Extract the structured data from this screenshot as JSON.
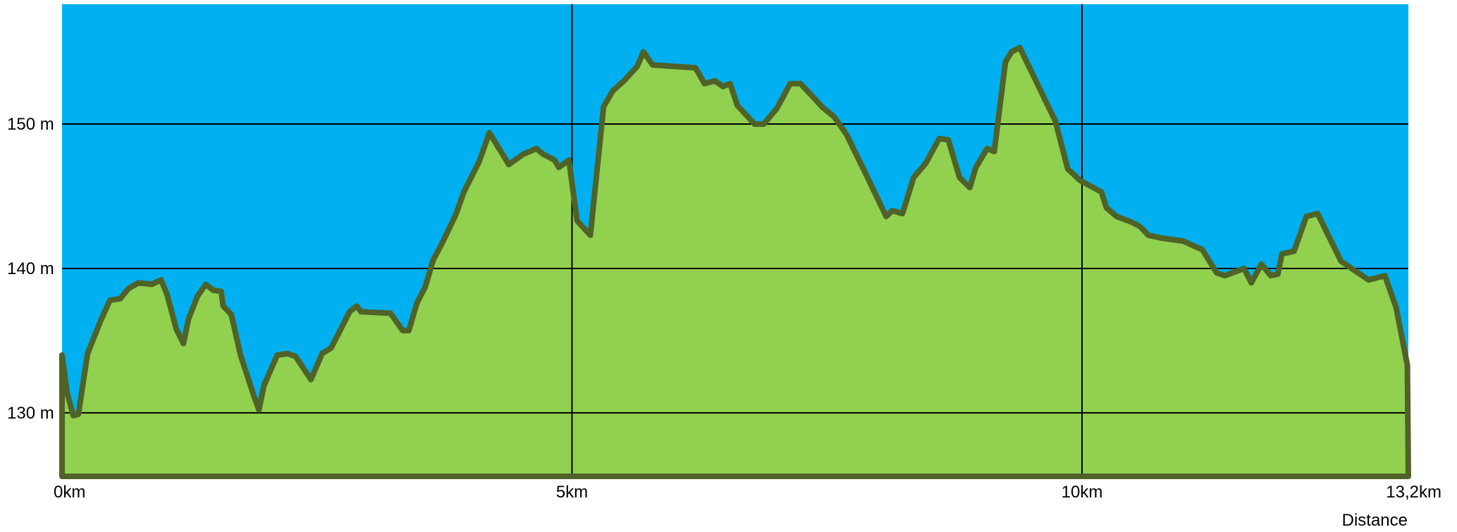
{
  "chart_data": {
    "type": "area",
    "title": "",
    "xlabel": "Distance",
    "ylabel": "",
    "xlim": [
      0,
      13.2
    ],
    "ylim": [
      125.6,
      158.3
    ],
    "grid": true,
    "x_ticks": [
      {
        "value": 0,
        "label": "0km"
      },
      {
        "value": 5,
        "label": "5km"
      },
      {
        "value": 10,
        "label": "10km"
      },
      {
        "value": 13.2,
        "label": "13,2km"
      }
    ],
    "y_ticks": [
      {
        "value": 130,
        "label": "130 m"
      },
      {
        "value": 140,
        "label": "140 m"
      },
      {
        "value": 150,
        "label": "150 m"
      }
    ],
    "colors": {
      "sky": "#00b0f0",
      "fill": "#92d050",
      "line": "#4f6228",
      "grid": "#000000"
    },
    "series": [
      {
        "x": [
          0.0,
          0.05,
          0.11,
          0.16,
          0.25,
          0.38,
          0.47,
          0.57,
          0.65,
          0.75,
          0.88,
          0.97,
          1.03,
          1.12,
          1.19,
          1.24,
          1.33,
          1.41,
          1.48,
          1.56,
          1.58,
          1.66,
          1.75,
          1.88,
          1.93,
          1.98,
          2.11,
          2.21,
          2.29,
          2.44,
          2.55,
          2.64,
          2.82,
          2.89,
          2.93,
          3.22,
          3.34,
          3.4,
          3.48,
          3.56,
          3.64,
          3.73,
          3.86,
          3.94,
          4.09,
          4.19,
          4.38,
          4.52,
          4.65,
          4.72,
          4.83,
          4.87,
          4.97,
          5.05,
          5.18,
          5.31,
          5.4,
          5.51,
          5.64,
          5.7,
          5.79,
          6.21,
          6.3,
          6.4,
          6.48,
          6.55,
          6.62,
          6.79,
          6.88,
          7.01,
          7.14,
          7.24,
          7.36,
          7.45,
          7.57,
          7.69,
          7.87,
          8.08,
          8.14,
          8.24,
          8.35,
          8.47,
          8.6,
          8.69,
          8.8,
          8.9,
          8.96,
          9.07,
          9.14,
          9.25,
          9.31,
          9.39,
          9.74,
          9.86,
          9.98,
          10.19,
          10.24,
          10.34,
          10.49,
          10.57,
          10.65,
          10.78,
          10.99,
          11.18,
          11.32,
          11.4,
          11.59,
          11.66,
          11.76,
          11.85,
          11.92,
          11.96,
          12.08,
          12.2,
          12.31,
          12.54,
          12.81,
          12.97,
          13.08,
          13.19
        ],
        "values": [
          134.0,
          131.4,
          129.8,
          129.9,
          134.1,
          136.4,
          137.8,
          137.9,
          138.6,
          139.0,
          138.9,
          139.2,
          138.2,
          135.8,
          134.8,
          136.5,
          138.1,
          138.9,
          138.5,
          138.4,
          137.4,
          136.8,
          134.0,
          131.2,
          130.2,
          131.9,
          134.0,
          134.1,
          133.9,
          132.3,
          134.1,
          134.5,
          137.0,
          137.4,
          137.0,
          136.9,
          135.7,
          135.7,
          137.6,
          138.7,
          140.6,
          141.8,
          143.7,
          145.3,
          147.4,
          149.4,
          147.2,
          147.9,
          148.3,
          147.9,
          147.5,
          147.0,
          147.5,
          143.3,
          142.3,
          151.2,
          152.3,
          153.0,
          154.0,
          155.0,
          154.1,
          153.9,
          152.8,
          153.0,
          152.6,
          152.8,
          151.3,
          150.0,
          150.0,
          151.1,
          152.8,
          152.8,
          151.9,
          151.2,
          150.5,
          149.3,
          146.7,
          143.6,
          144.0,
          143.8,
          146.3,
          147.3,
          149.0,
          148.9,
          146.3,
          145.6,
          147.0,
          148.3,
          148.1,
          154.3,
          155.0,
          155.3,
          150.2,
          146.9,
          146.1,
          145.3,
          144.2,
          143.6,
          143.2,
          142.9,
          142.3,
          142.1,
          141.9,
          141.3,
          139.7,
          139.5,
          140.0,
          139.0,
          140.3,
          139.5,
          139.6,
          141.0,
          141.2,
          143.6,
          143.8,
          140.5,
          139.2,
          139.5,
          137.3,
          133.3
        ]
      }
    ]
  }
}
